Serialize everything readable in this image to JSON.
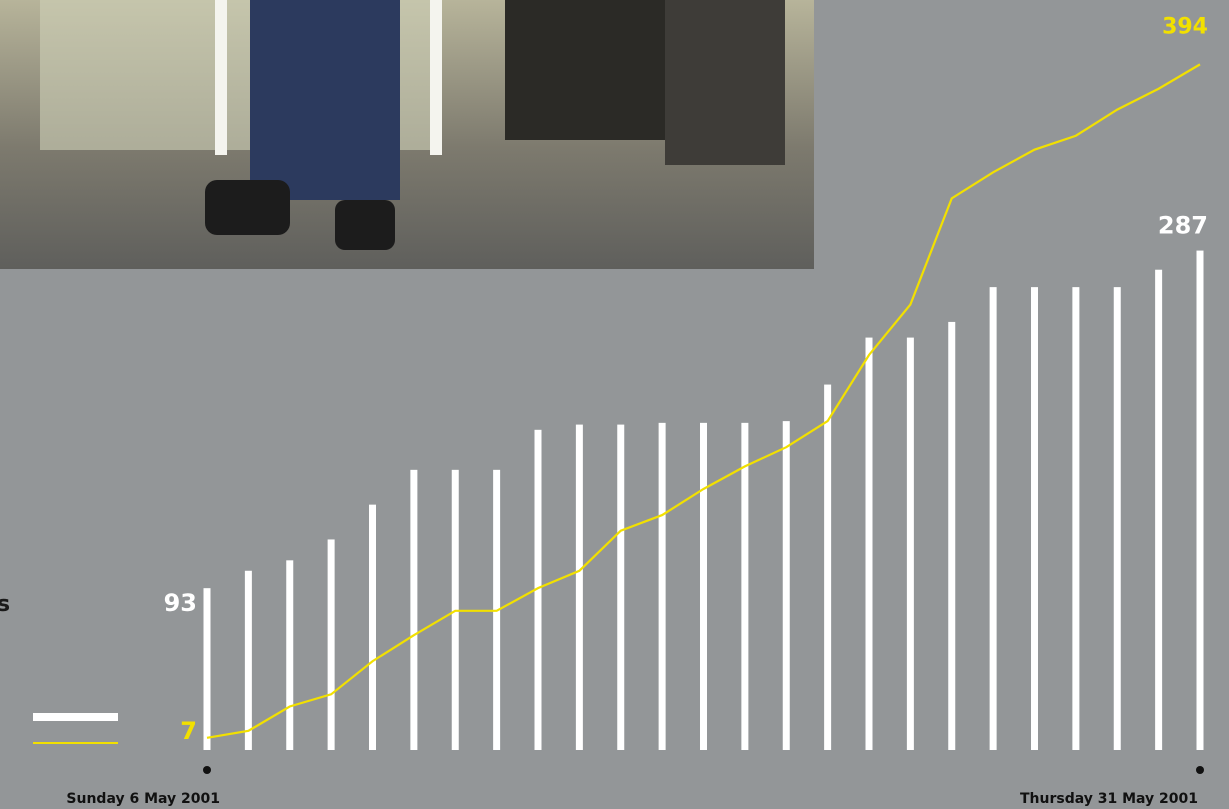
{
  "chart_data": {
    "type": "bar",
    "annotation": "s",
    "categories": [
      "Sunday 6 May 2001",
      null,
      null,
      null,
      null,
      null,
      null,
      null,
      null,
      null,
      null,
      null,
      null,
      null,
      null,
      null,
      null,
      null,
      null,
      null,
      null,
      null,
      null,
      null,
      "Thursday 31 May 2001"
    ],
    "series": [
      {
        "type": "bar",
        "color": "#ffffff",
        "values": [
          93,
          103,
          109,
          121,
          141,
          161,
          161,
          161,
          184,
          187,
          187,
          188,
          188,
          188,
          189,
          210,
          237,
          237,
          246,
          266,
          266,
          266,
          266,
          276,
          287
        ]
      },
      {
        "type": "line",
        "color": "#f2e000",
        "values": [
          7,
          11,
          25,
          32,
          51,
          66,
          80,
          80,
          93,
          103,
          126,
          135,
          150,
          163,
          174,
          189,
          227,
          256,
          317,
          332,
          345,
          353,
          368,
          380,
          394
        ]
      }
    ],
    "ylim": [
      0,
      431
    ]
  }
}
